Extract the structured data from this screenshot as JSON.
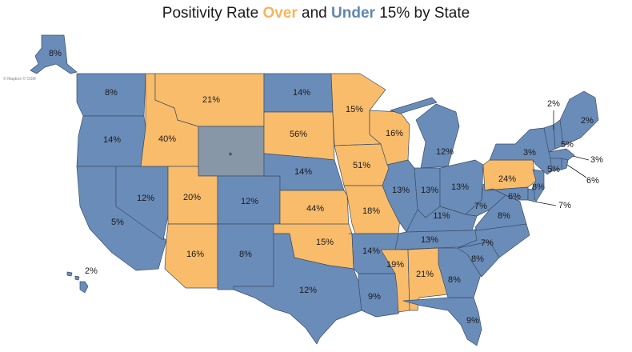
{
  "title": {
    "prefix": "Positivity Rate ",
    "over": "Over",
    "middle": " and ",
    "under": "Under",
    "suffix": " 15% by State"
  },
  "credit": "© Mapbox © OSM",
  "colors": {
    "over": "#f9bc6b",
    "under": "#6a8cb9",
    "no_data": "#8797a8",
    "border": "#3c4f66"
  },
  "states": [
    {
      "state": "Alaska",
      "value": "8%",
      "group": "under"
    },
    {
      "state": "Hawaii",
      "value": "2%",
      "group": "under"
    },
    {
      "state": "Washington",
      "value": "8%",
      "group": "under"
    },
    {
      "state": "Oregon",
      "value": "14%",
      "group": "under"
    },
    {
      "state": "California",
      "value": "5%",
      "group": "under"
    },
    {
      "state": "Nevada",
      "value": "12%",
      "group": "under"
    },
    {
      "state": "Idaho",
      "value": "40%",
      "group": "over"
    },
    {
      "state": "Montana",
      "value": "21%",
      "group": "over"
    },
    {
      "state": "Wyoming",
      "value": "*",
      "group": "no_data"
    },
    {
      "state": "Utah",
      "value": "20%",
      "group": "over"
    },
    {
      "state": "Arizona",
      "value": "16%",
      "group": "over"
    },
    {
      "state": "Colorado",
      "value": "12%",
      "group": "under"
    },
    {
      "state": "New Mexico",
      "value": "8%",
      "group": "under"
    },
    {
      "state": "North Dakota",
      "value": "14%",
      "group": "under"
    },
    {
      "state": "South Dakota",
      "value": "56%",
      "group": "over"
    },
    {
      "state": "Nebraska",
      "value": "14%",
      "group": "under"
    },
    {
      "state": "Kansas",
      "value": "44%",
      "group": "over"
    },
    {
      "state": "Oklahoma",
      "value": "15%",
      "group": "over"
    },
    {
      "state": "Texas",
      "value": "12%",
      "group": "under"
    },
    {
      "state": "Minnesota",
      "value": "15%",
      "group": "over"
    },
    {
      "state": "Iowa",
      "value": "51%",
      "group": "over"
    },
    {
      "state": "Missouri",
      "value": "18%",
      "group": "over"
    },
    {
      "state": "Arkansas",
      "value": "14%",
      "group": "under"
    },
    {
      "state": "Louisiana",
      "value": "9%",
      "group": "under"
    },
    {
      "state": "Wisconsin",
      "value": "16%",
      "group": "over"
    },
    {
      "state": "Illinois",
      "value": "13%",
      "group": "under"
    },
    {
      "state": "Michigan",
      "value": "12%",
      "group": "under"
    },
    {
      "state": "Indiana",
      "value": "13%",
      "group": "under"
    },
    {
      "state": "Ohio",
      "value": "13%",
      "group": "under"
    },
    {
      "state": "Kentucky",
      "value": "11%",
      "group": "under"
    },
    {
      "state": "Tennessee",
      "value": "13%",
      "group": "under"
    },
    {
      "state": "Mississippi",
      "value": "19%",
      "group": "over"
    },
    {
      "state": "Alabama",
      "value": "21%",
      "group": "over"
    },
    {
      "state": "Georgia",
      "value": "8%",
      "group": "under"
    },
    {
      "state": "Florida",
      "value": "9%",
      "group": "under"
    },
    {
      "state": "South Carolina",
      "value": "8%",
      "group": "under"
    },
    {
      "state": "North Carolina",
      "value": "7%",
      "group": "under"
    },
    {
      "state": "Virginia",
      "value": "8%",
      "group": "under"
    },
    {
      "state": "West Virginia",
      "value": "7%",
      "group": "under"
    },
    {
      "state": "Pennsylvania",
      "value": "24%",
      "group": "over"
    },
    {
      "state": "New York",
      "value": "3%",
      "group": "under"
    },
    {
      "state": "Vermont",
      "value": "2%",
      "group": "under"
    },
    {
      "state": "Maine",
      "value": "2%",
      "group": "under"
    },
    {
      "state": "New Hampshire",
      "value": "5%",
      "group": "under"
    },
    {
      "state": "Massachusetts",
      "value": "3%",
      "group": "under"
    },
    {
      "state": "Rhode Island",
      "value": "6%",
      "group": "under"
    },
    {
      "state": "Connecticut",
      "value": "5%",
      "group": "under"
    },
    {
      "state": "New Jersey",
      "value": "8%",
      "group": "under"
    },
    {
      "state": "Maryland",
      "value": "6%",
      "group": "under"
    },
    {
      "state": "Delaware",
      "value": "7%",
      "group": "under"
    }
  ]
}
